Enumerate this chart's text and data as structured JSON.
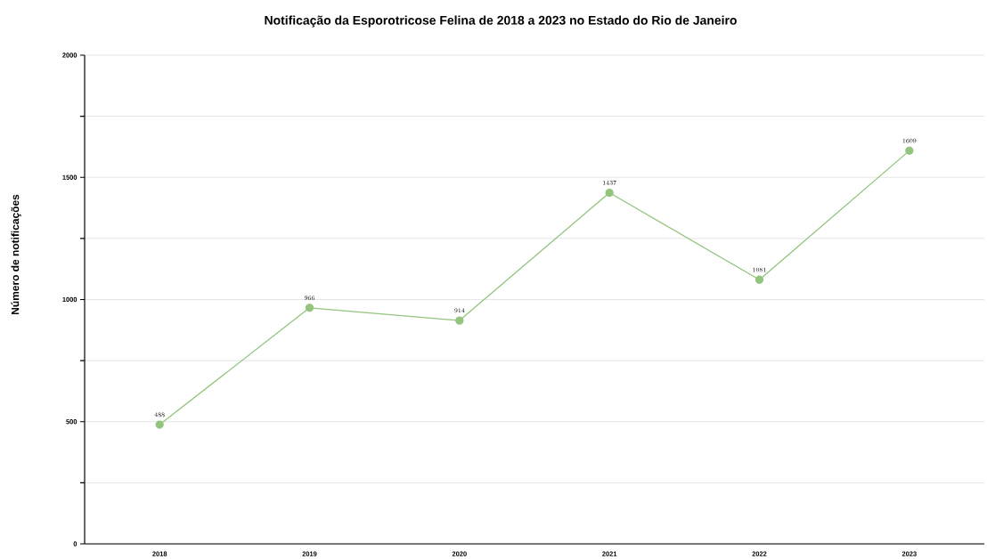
{
  "chart_data": {
    "type": "line",
    "title": "Notificação da Esporotricose Felina de 2018 a 2023 no Estado do Rio de Janeiro",
    "ylabel": "Número de notificações",
    "categories": [
      "2018",
      "2019",
      "2020",
      "2021",
      "2022",
      "2023"
    ],
    "values": [
      488,
      966,
      914,
      1437,
      1081,
      1609
    ],
    "color": "#93c47d",
    "marker": "circle",
    "line_style": "solid",
    "data_labels": true,
    "grid": "y",
    "ylim": [
      0,
      2000
    ],
    "yticks": [
      0,
      {
        "value": 250,
        "label": null
      },
      500,
      {
        "value": 750,
        "label": null
      },
      1000,
      {
        "value": 1250,
        "label": null
      },
      1500,
      {
        "value": 1750,
        "label": null
      },
      2000
    ]
  }
}
